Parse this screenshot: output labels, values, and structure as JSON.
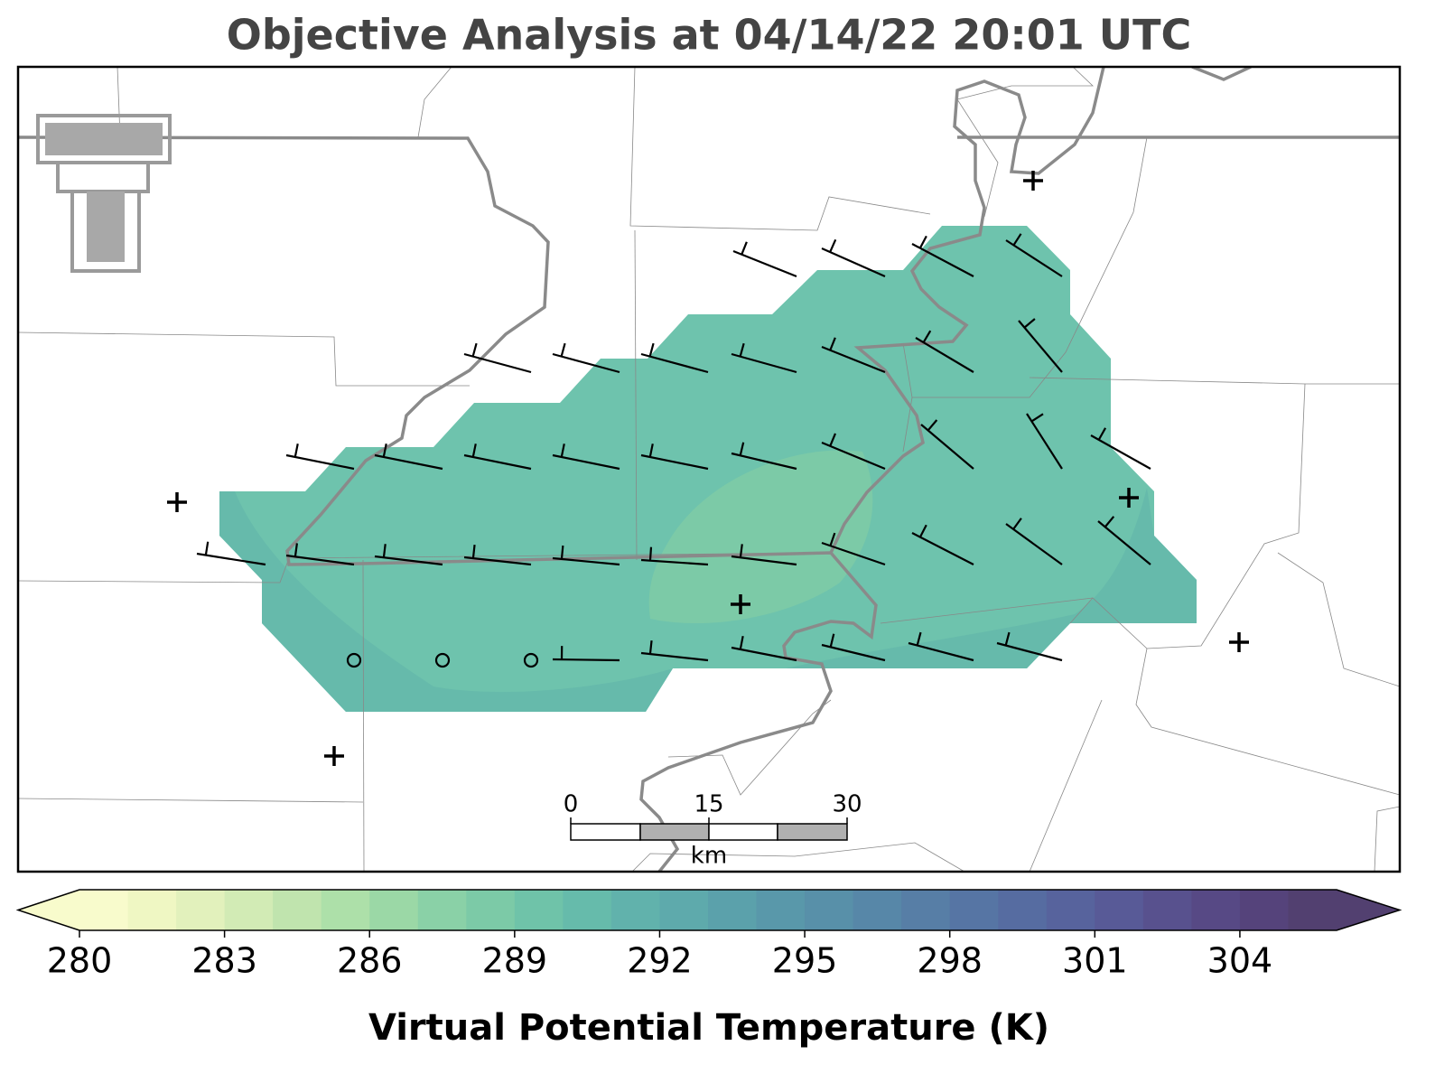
{
  "chart_data": {
    "type": "map",
    "title": "Objective Analysis at 04/14/22 20:01 UTC",
    "scale_bar": {
      "labels": [
        0,
        15,
        30
      ],
      "unit": "km"
    },
    "colorbar": {
      "vmin": 280,
      "vmax": 306,
      "ticks": [
        280,
        283,
        286,
        289,
        292,
        295,
        298,
        301,
        304
      ],
      "extend": "both",
      "label": "Virtual Potential Temperature (K)",
      "colors": [
        "#f8fbcc",
        "#eff7c3",
        "#e2f1bc",
        "#d2ebb5",
        "#c0e4ae",
        "#ade0a9",
        "#9bd8a6",
        "#8ad1a7",
        "#7ccaa7",
        "#6fc3a9",
        "#66bbab",
        "#61b2ac",
        "#5eaaac",
        "#5ba1ab",
        "#5998aa",
        "#5890a9",
        "#5787a8",
        "#577ea6",
        "#5675a4",
        "#566ca1",
        "#57639d",
        "#585a97",
        "#58518e",
        "#574985",
        "#55437b",
        "#524070"
      ]
    }
  }
}
